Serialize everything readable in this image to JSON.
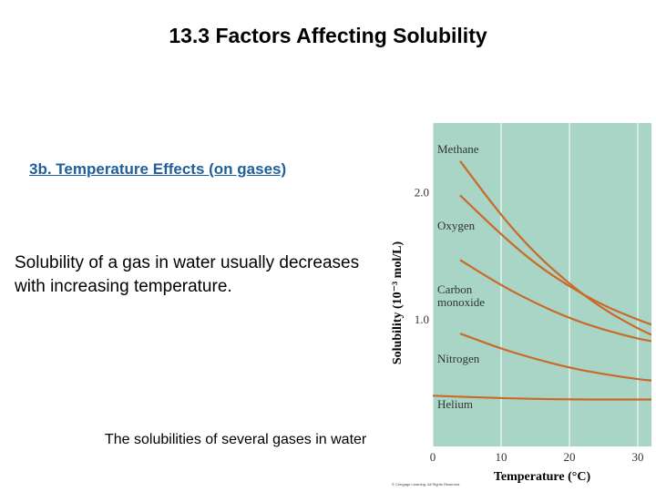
{
  "slide": {
    "title": "13.3 Factors Affecting Solubility",
    "subheading": "3b. Temperature Effects (on gases)",
    "body": "Solubility of a gas in water usually decreases with increasing temperature.",
    "caption": "The solubilities of several gases in water"
  },
  "chart_data": {
    "type": "line",
    "title": "",
    "xlabel": "Temperature (°C)",
    "ylabel": "Solubility (10⁻³ mol/L)",
    "x_ticks": [
      "0",
      "10",
      "20",
      "30"
    ],
    "y_ticks": [
      "1.0",
      "2.0"
    ],
    "xlim": [
      0,
      32
    ],
    "ylim": [
      0,
      2.55
    ],
    "grid": true,
    "background": "#a8d5c6",
    "line_color": "#c96a2a",
    "copyright": "© Cengage Learning. All Rights Reserved.",
    "series": [
      {
        "name": "Methane",
        "x": [
          4,
          10,
          15,
          20,
          25,
          30,
          32
        ],
        "y": [
          2.25,
          1.82,
          1.52,
          1.28,
          1.08,
          0.93,
          0.88
        ]
      },
      {
        "name": "Oxygen",
        "x": [
          4,
          10,
          15,
          20,
          25,
          30,
          32
        ],
        "y": [
          1.98,
          1.67,
          1.44,
          1.26,
          1.11,
          1.0,
          0.96
        ]
      },
      {
        "name": "Carbon monoxide",
        "x": [
          4,
          10,
          15,
          20,
          25,
          30,
          32
        ],
        "y": [
          1.47,
          1.27,
          1.13,
          1.01,
          0.92,
          0.85,
          0.83
        ]
      },
      {
        "name": "Nitrogen",
        "x": [
          4,
          10,
          15,
          20,
          25,
          30,
          32
        ],
        "y": [
          0.89,
          0.77,
          0.69,
          0.62,
          0.57,
          0.53,
          0.52
        ]
      },
      {
        "name": "Helium",
        "x": [
          0,
          10,
          20,
          30,
          32
        ],
        "y": [
          0.4,
          0.38,
          0.37,
          0.37,
          0.37
        ]
      }
    ]
  }
}
